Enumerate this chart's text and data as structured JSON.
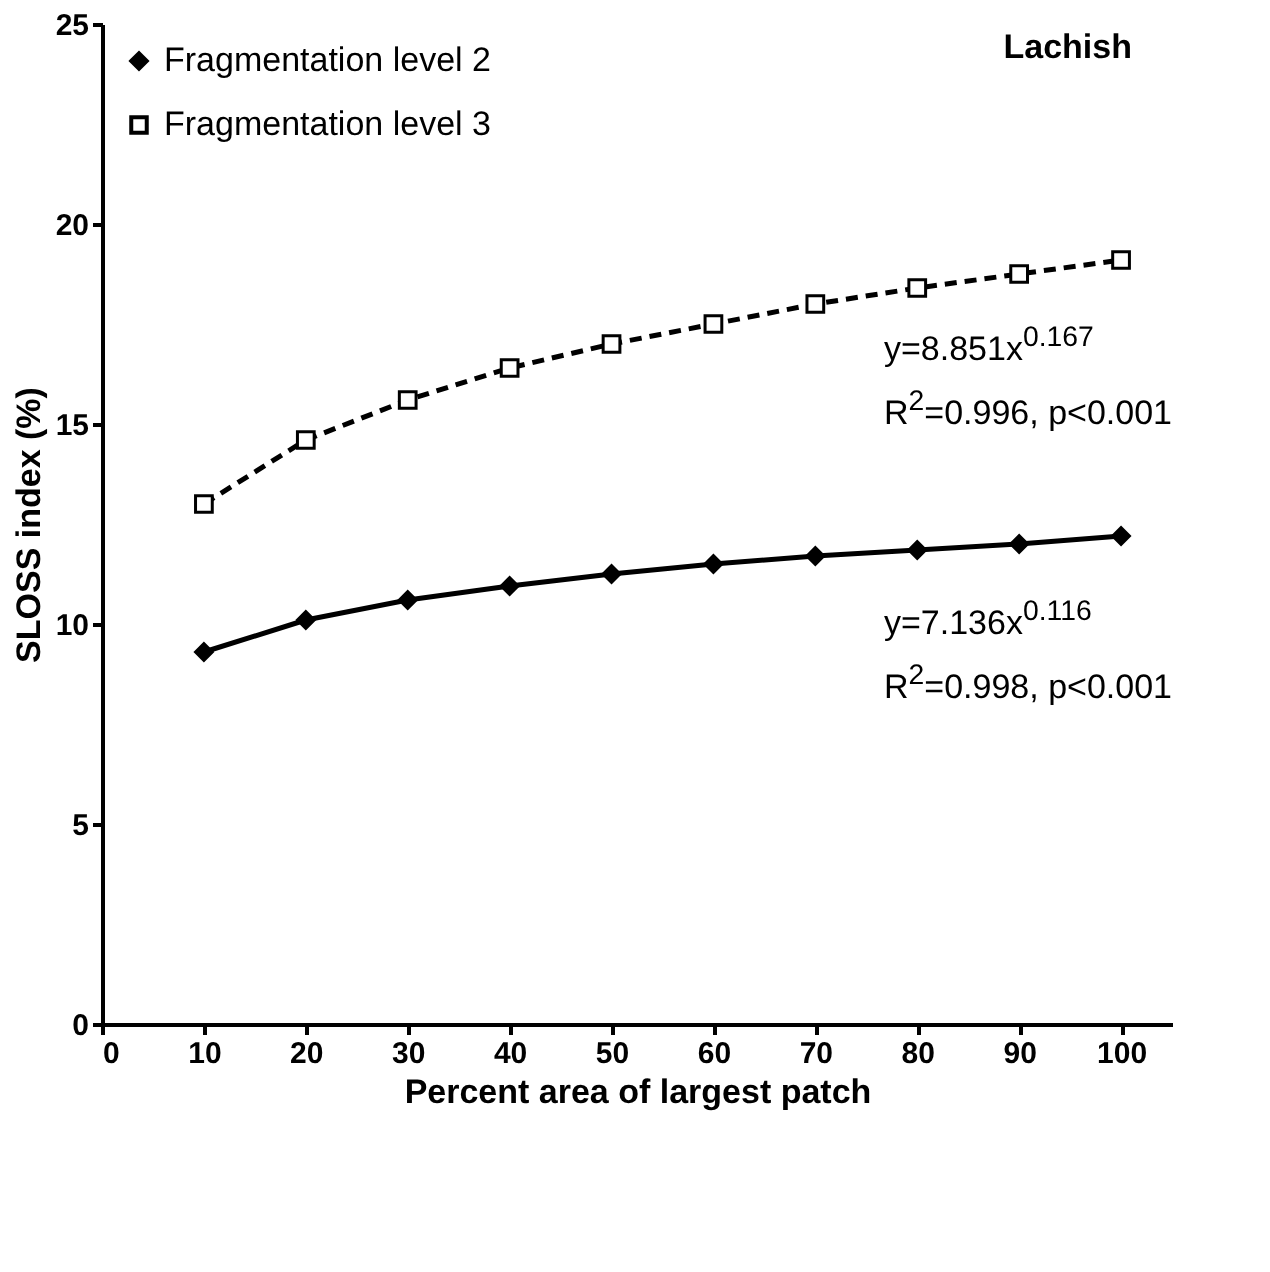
{
  "chart_data": {
    "type": "line",
    "title": "Lachish",
    "xlabel": "Percent area of largest patch",
    "ylabel": "SLOSS index (%)",
    "x": [
      10,
      20,
      30,
      40,
      50,
      60,
      70,
      80,
      90,
      100
    ],
    "series": [
      {
        "name": "Fragmentation level 2",
        "color": "#000000",
        "marker": "diamond",
        "line_style": "solid",
        "values": [
          9.3,
          10.1,
          10.6,
          10.95,
          11.25,
          11.5,
          11.7,
          11.85,
          12.0,
          12.2
        ]
      },
      {
        "name": "Fragmentation level 3",
        "color": "#000000",
        "marker": "square",
        "line_style": "dashed",
        "values": [
          13.0,
          14.6,
          15.6,
          16.4,
          17.0,
          17.5,
          18.0,
          18.4,
          18.75,
          19.1
        ]
      }
    ],
    "xlim": [
      0,
      105
    ],
    "xticks": [
      0,
      10,
      20,
      30,
      40,
      50,
      60,
      70,
      80,
      90,
      100
    ],
    "ylim": [
      0,
      25
    ],
    "yticks": [
      0,
      5,
      10,
      15,
      20,
      25
    ],
    "grid": false,
    "legend": "top left",
    "annotations": [
      "y=8.851x$^{0.167}$",
      "R$^{2}$=0.996, p<0.001",
      "y=7.136x$^{0.116}$",
      "R$^{2}$=0.998, p<0.001"
    ]
  }
}
